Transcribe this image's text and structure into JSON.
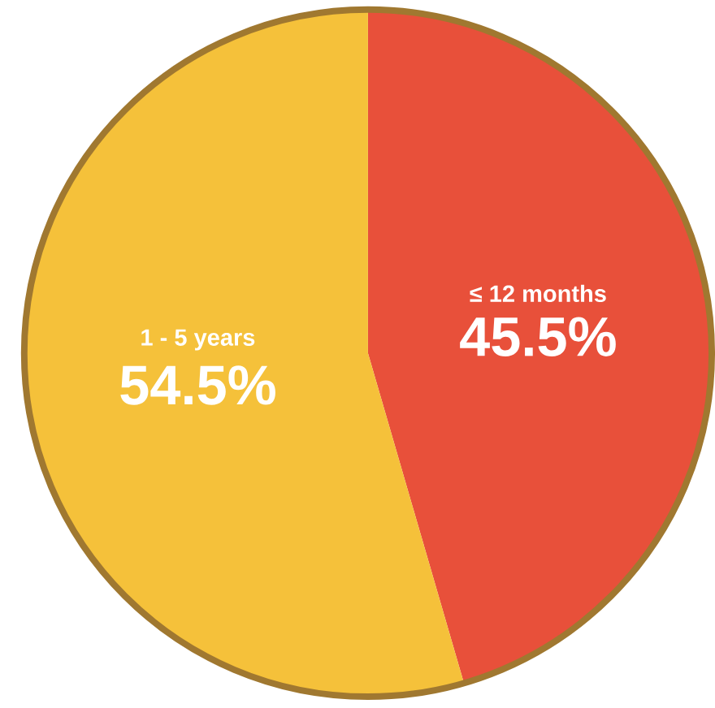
{
  "chart_data": {
    "type": "pie",
    "categories": [
      "≤ 12 months",
      "1 - 5 years"
    ],
    "values": [
      45.5,
      54.5
    ],
    "colors": [
      "#e8503a",
      "#f5c13a"
    ],
    "value_labels": [
      "45.5%",
      "54.5%"
    ]
  }
}
